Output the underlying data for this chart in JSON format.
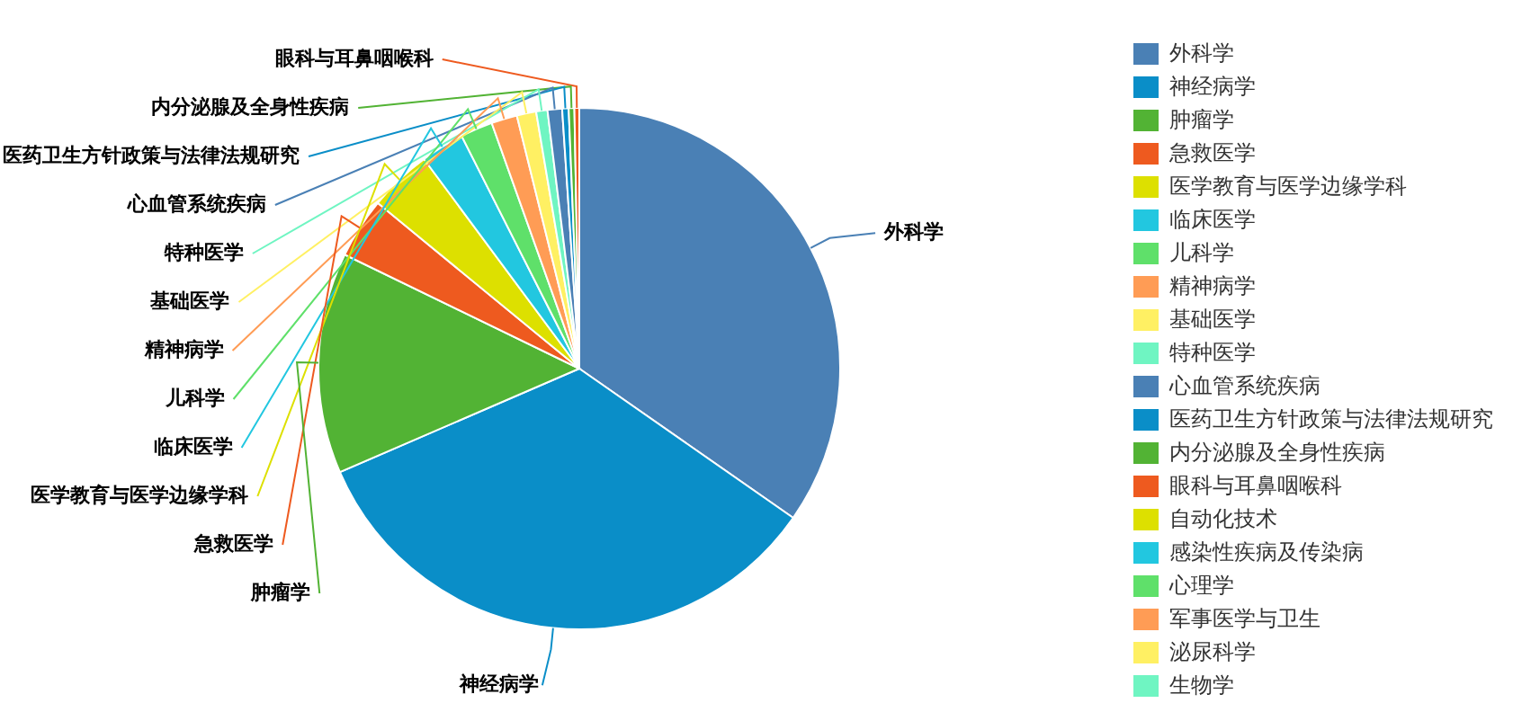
{
  "chart_data": {
    "type": "pie",
    "legend": "right",
    "categories": [
      "外科学",
      "神经病学",
      "肿瘤学",
      "急救医学",
      "医学教育与医学边缘学科",
      "临床医学",
      "儿科学",
      "精神病学",
      "基础医学",
      "特种医学",
      "心血管系统疾病",
      "医药卫生方针政策与法律法规研究",
      "内分泌腺及全身性疾病",
      "眼科与耳鼻咽喉科",
      "自动化技术",
      "感染性疾病及传染病",
      "心理学",
      "军事医学与卫生",
      "泌尿科学",
      "生物学"
    ],
    "values": [
      34.7,
      33.8,
      13.7,
      3.75,
      3.9,
      2.7,
      2.0,
      1.6,
      1.2,
      0.7,
      0.9,
      0.4,
      0.35,
      0.3,
      0,
      0,
      0,
      0,
      0,
      0
    ],
    "colors": [
      "#4a80b5",
      "#0a8ec8",
      "#52b334",
      "#ee5a1f",
      "#dde000",
      "#22c7e0",
      "#5fe06a",
      "#ff9c55",
      "#fff063",
      "#6ff5c2",
      "#4a80b5",
      "#0a8ec8",
      "#52b334",
      "#ee5a1f",
      "#dde000",
      "#22c7e0",
      "#5fe06a",
      "#ff9c55",
      "#fff063",
      "#6ff5c2"
    ]
  }
}
